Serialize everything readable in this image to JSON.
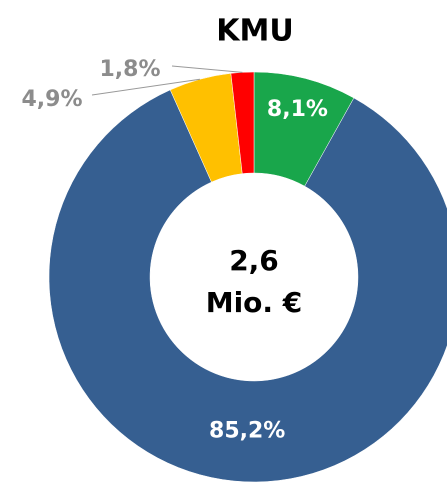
{
  "chart_data": {
    "type": "donut",
    "title": "KMU",
    "categories": [
      null,
      null,
      null,
      null
    ],
    "values": [
      8.1,
      85.2,
      4.9,
      1.8
    ],
    "value_labels": [
      "8,1%",
      "85,2%",
      "4,9%",
      "1,8%"
    ],
    "colors": [
      "#19a64b",
      "#365f91",
      "#ffc000",
      "#ff0000"
    ],
    "annotations": [
      "2,6",
      "Mio. €"
    ]
  }
}
